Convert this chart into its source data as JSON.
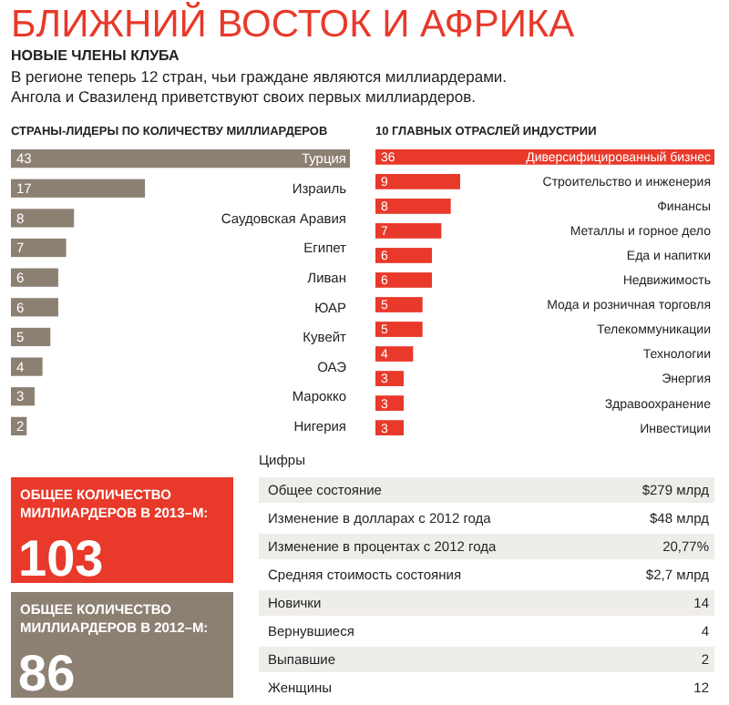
{
  "chart_data": [
    {
      "type": "other",
      "title": "БЛИЖНИЙ ВОСТОК И АФРИКА",
      "subtitle": "НОВЫЕ ЧЛЕНЫ КЛУБА",
      "annotations": [
        "В регионе теперь 12 стран, чьи граждане являются миллиардерами.",
        "Ангола и Свазиленд приветствуют своих первых миллиардеров."
      ]
    },
    {
      "type": "bar",
      "orientation": "horizontal",
      "title": "СТРАНЫ-ЛИДЕРЫ ПО КОЛИЧЕСТВУ МИЛЛИАРДЕРОВ",
      "categories": [
        "Турция",
        "Израиль",
        "Саудовская Аравия",
        "Египет",
        "Ливан",
        "ЮАР",
        "Кувейт",
        "ОАЭ",
        "Марокко",
        "Нигерия"
      ],
      "values": [
        43,
        17,
        8,
        7,
        6,
        6,
        5,
        4,
        3,
        2
      ],
      "color": "#8c8073",
      "data_labels": true
    },
    {
      "type": "bar",
      "orientation": "horizontal",
      "title": "10 ГЛАВНЫХ ОТРАСЛЕЙ ИНДУСТРИИ",
      "categories": [
        "Диверсифицированный бизнес",
        "Строительство и инженерия",
        "Финансы",
        "Металлы и горное дело",
        "Еда и напитки",
        "Недвижимость",
        "Мода и розничная торговля",
        "Телекоммуникации",
        "Технологии",
        "Энергия",
        "Здравоохранение",
        "Инвестиции"
      ],
      "values": [
        36,
        9,
        8,
        7,
        6,
        6,
        5,
        5,
        4,
        3,
        3,
        3
      ],
      "color": "#e8392a",
      "data_labels": true
    },
    {
      "type": "other",
      "annotations": [
        "ОБЩЕЕ КОЛИЧЕСТВО МИЛЛИАРДЕРОВ В 2013–М:",
        "103",
        "ОБЩЕЕ КОЛИЧЕСТВО МИЛЛИАРДЕРОВ В 2012–М:",
        "86"
      ],
      "colors": [
        "#e8392a",
        "#8c8073"
      ]
    },
    {
      "type": "other",
      "title": "Цифры",
      "annotations": [
        "Общее состояние",
        "$279 млрд",
        "Изменение в долларах с 2012 года",
        "$48 млрд",
        "Изменение в процентах с 2012 года",
        "20,77%",
        "Средняя стоимость состояния",
        "$2,7 млрд",
        "Новички",
        "14",
        "Вернувшиеся",
        "4",
        "Выпавшие",
        "2",
        "Женщины",
        "12"
      ]
    }
  ]
}
